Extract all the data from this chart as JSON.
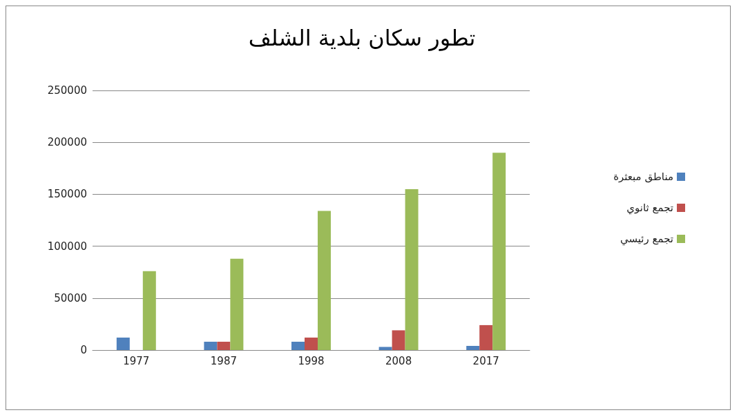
{
  "chart_data": {
    "type": "bar",
    "title": "تطور سكان بلدية الشلف",
    "categories": [
      "1977",
      "1987",
      "1998",
      "2008",
      "2017"
    ],
    "series": [
      {
        "name": "مناطق مبعثرة",
        "color": "#4f81bd",
        "values": [
          12000,
          8000,
          8000,
          3000,
          4000
        ]
      },
      {
        "name": "تجمع ثانوي",
        "color": "#c0504d",
        "values": [
          null,
          8000,
          12000,
          19000,
          24000
        ]
      },
      {
        "name": "تجمع رئيسي",
        "color": "#9bbb59",
        "values": [
          76000,
          88000,
          134000,
          155000,
          190000
        ]
      }
    ],
    "ylim": [
      0,
      250000
    ],
    "yticks": [
      0,
      50000,
      100000,
      150000,
      200000,
      250000
    ],
    "grid": "y",
    "legend": "right"
  }
}
